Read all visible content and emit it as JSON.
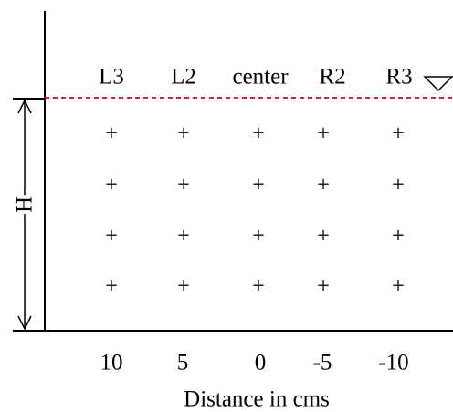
{
  "diagram": {
    "column_labels": [
      "L3",
      "L2",
      "center",
      "R2",
      "R3"
    ],
    "distance_ticks": [
      "10",
      "5",
      "0",
      "-5",
      "-10"
    ],
    "x_axis_title": "Distance in cms",
    "height_label": "H",
    "point_marker": "+",
    "point_rows": 4,
    "water_surface_icon": "inverted-triangle-icon",
    "water_line_color": "#d9232e",
    "line_color": "#000000"
  }
}
